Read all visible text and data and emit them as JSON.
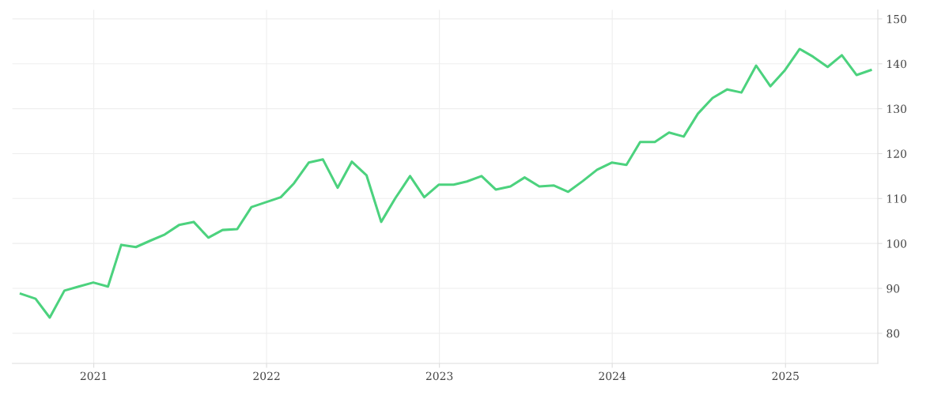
{
  "chart_data": {
    "type": "line",
    "x": [
      "2020-07-31",
      "2020-08-31",
      "2020-09-30",
      "2020-10-31",
      "2020-11-30",
      "2020-12-31",
      "2021-01-31",
      "2021-02-28",
      "2021-03-31",
      "2021-04-30",
      "2021-05-31",
      "2021-06-30",
      "2021-07-31",
      "2021-08-31",
      "2021-09-30",
      "2021-10-31",
      "2021-11-30",
      "2021-12-31",
      "2022-01-31",
      "2022-02-28",
      "2022-03-31",
      "2022-04-30",
      "2022-05-31",
      "2022-06-30",
      "2022-07-31",
      "2022-08-31",
      "2022-09-30",
      "2022-10-31",
      "2022-11-30",
      "2022-12-31",
      "2023-01-31",
      "2023-02-28",
      "2023-03-31",
      "2023-04-30",
      "2023-05-31",
      "2023-06-30",
      "2023-07-31",
      "2023-08-31",
      "2023-09-30",
      "2023-10-31",
      "2023-11-30",
      "2023-12-31",
      "2024-01-31",
      "2024-02-29",
      "2024-03-31",
      "2024-04-30",
      "2024-05-31",
      "2024-06-30",
      "2024-07-31",
      "2024-08-31",
      "2024-09-30",
      "2024-10-31",
      "2024-11-30",
      "2024-12-31",
      "2025-01-31",
      "2025-02-28",
      "2025-03-31",
      "2025-04-30",
      "2025-05-31",
      "2025-06-30"
    ],
    "series": [
      {
        "color": "#4cd27e",
        "values": [
          88.8,
          87.7,
          83.5,
          89.5,
          90.4,
          91.3,
          90.4,
          99.7,
          99.2,
          100.6,
          102.0,
          104.1,
          104.8,
          101.3,
          103.0,
          103.2,
          108.1,
          109.2,
          110.3,
          113.4,
          118.0,
          118.7,
          112.4,
          118.2,
          115.2,
          104.8,
          110.1,
          115.0,
          110.3,
          113.1,
          113.1,
          113.8,
          115.0,
          112.0,
          112.7,
          114.7,
          112.7,
          112.9,
          111.5,
          113.9,
          116.4,
          118.0,
          117.5,
          122.6,
          122.6,
          124.7,
          123.8,
          128.9,
          132.4,
          134.3,
          133.6,
          139.6,
          135.0,
          138.6,
          143.3,
          141.6,
          139.3,
          141.9,
          137.5,
          138.6
        ]
      }
    ],
    "xlim": [
      "2020-07-13",
      "2025-07-15"
    ],
    "xticks": [
      "2021",
      "2022",
      "2023",
      "2024",
      "2025"
    ],
    "ylim": [
      73.3,
      152
    ],
    "yticks": [
      80,
      90,
      100,
      110,
      120,
      130,
      140,
      150
    ],
    "grid": true,
    "marker": "none",
    "line_style": "solid"
  }
}
